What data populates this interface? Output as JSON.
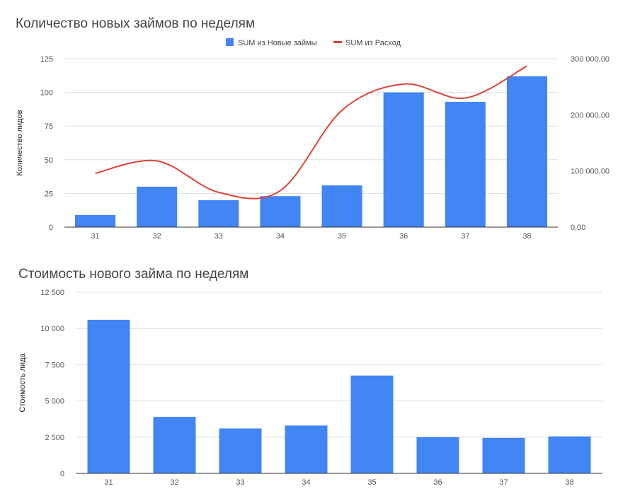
{
  "chart_data": [
    {
      "type": "bar",
      "title": "Количество новых займов по неделям",
      "categories": [
        "31",
        "32",
        "33",
        "34",
        "35",
        "36",
        "37",
        "38"
      ],
      "series": [
        {
          "name": "SUM из Новые займы",
          "type": "bar",
          "axis": "left",
          "color": "#4285f4",
          "values": [
            9,
            30,
            20,
            23,
            31,
            100,
            93,
            112
          ]
        },
        {
          "name": "SUM из Расход",
          "type": "line",
          "smooth": true,
          "axis": "right",
          "color": "#db4437",
          "values": [
            96000,
            118000,
            62000,
            65000,
            208000,
            255000,
            230000,
            287000
          ]
        }
      ],
      "ylabel": "Количество лидов",
      "ylim": [
        0,
        125
      ],
      "yticks": [
        "0",
        "25",
        "50",
        "75",
        "100",
        "125"
      ],
      "y2lim": [
        0,
        300000
      ],
      "y2ticks": [
        "0,00",
        "100 000,00",
        "200 000,00",
        "300 000,00"
      ],
      "legend": "top",
      "grid": true
    },
    {
      "type": "bar",
      "title": "Стоимость нового займа по неделям",
      "categories": [
        "31",
        "32",
        "33",
        "34",
        "35",
        "36",
        "37",
        "38"
      ],
      "series": [
        {
          "type": "bar",
          "color": "#4285f4",
          "values": [
            10600,
            3900,
            3100,
            3300,
            6750,
            2500,
            2450,
            2550
          ]
        }
      ],
      "ylabel": "Стоимость лида",
      "ylim": [
        0,
        12500
      ],
      "yticks": [
        "0",
        "2 500",
        "5 000",
        "7 500",
        "10 000",
        "12 500"
      ],
      "grid": true
    }
  ]
}
